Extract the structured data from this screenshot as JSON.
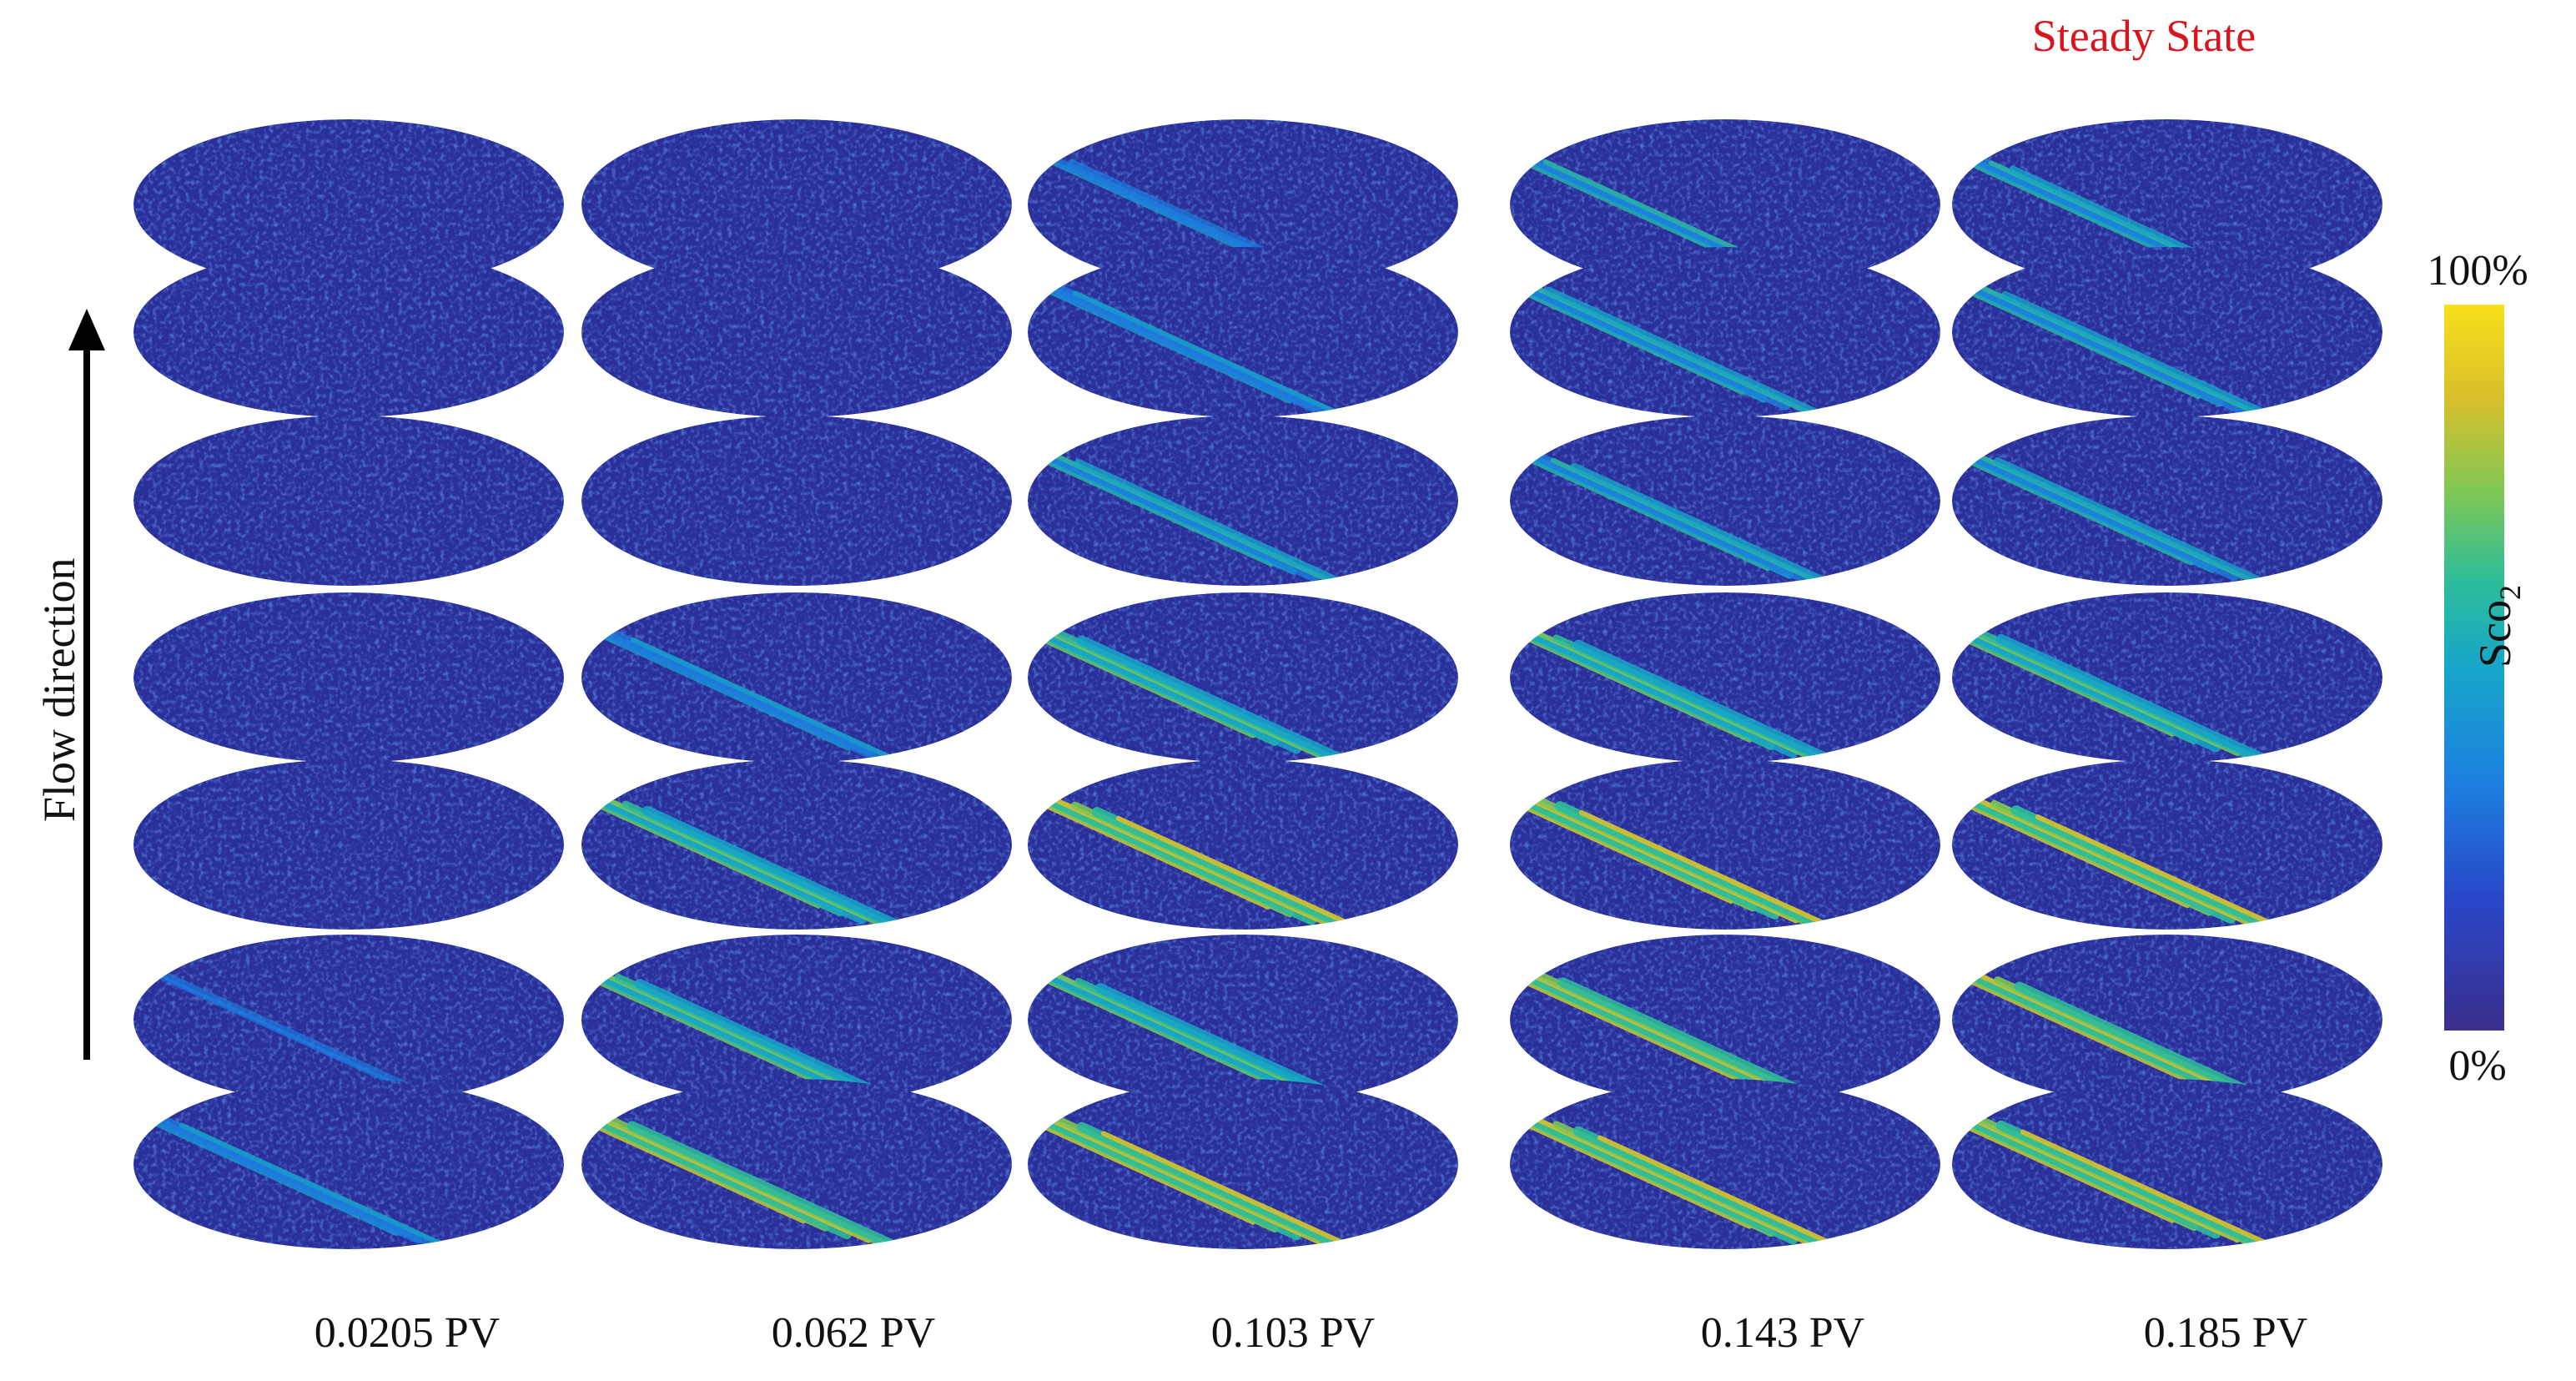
{
  "header": {
    "steady_state_label": "Steady State"
  },
  "axis": {
    "flow_label": "Flow direction"
  },
  "colorbar": {
    "max_label": "100%",
    "min_label": "0%",
    "title_main": "Sco",
    "title_sub": "2",
    "colors": [
      "#3b2f8c",
      "#2947c8",
      "#1d7fe0",
      "#17a6c9",
      "#2ebd9a",
      "#7ec755",
      "#d8bf2c",
      "#f9e01a"
    ]
  },
  "columns": [
    {
      "label": "0.0205 PV",
      "intensity": [
        0.02,
        0.02,
        0.02,
        0.03,
        0.05,
        0.25,
        0.45
      ]
    },
    {
      "label": "0.062 PV",
      "intensity": [
        0.02,
        0.03,
        0.05,
        0.45,
        0.75,
        0.7,
        0.8
      ]
    },
    {
      "label": "0.103 PV",
      "intensity": [
        0.4,
        0.45,
        0.6,
        0.75,
        0.85,
        0.75,
        0.85
      ]
    },
    {
      "label": "0.143 PV",
      "intensity": [
        0.55,
        0.6,
        0.6,
        0.75,
        0.9,
        0.8,
        0.85
      ]
    },
    {
      "label": "0.185 PV",
      "intensity": [
        0.6,
        0.6,
        0.6,
        0.75,
        0.9,
        0.8,
        0.85
      ]
    }
  ]
}
